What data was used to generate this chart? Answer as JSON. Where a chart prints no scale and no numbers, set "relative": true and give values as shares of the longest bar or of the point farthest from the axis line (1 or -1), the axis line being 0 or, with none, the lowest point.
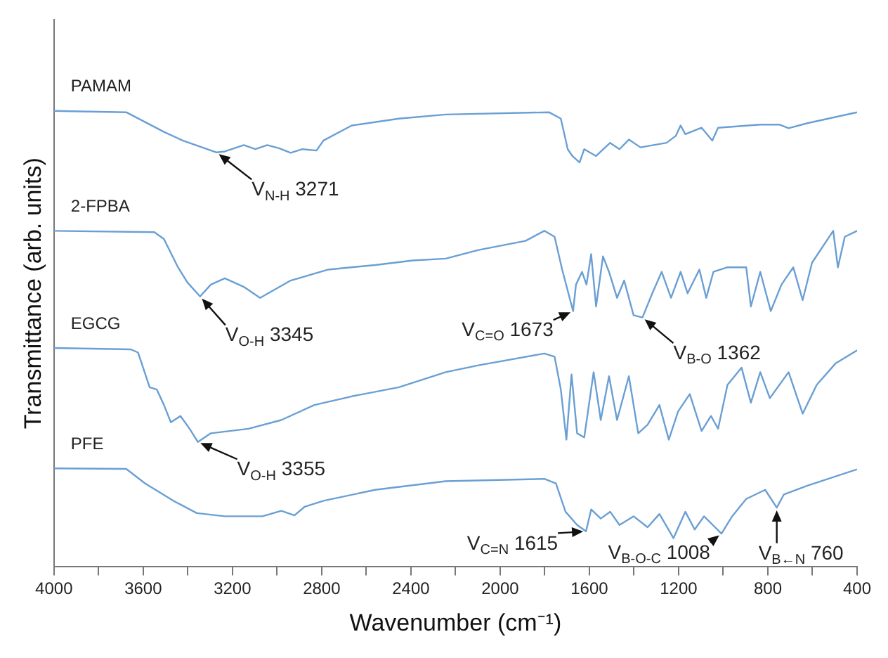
{
  "chart_data": {
    "type": "line",
    "xlabel": "Wavenumber (cm⁻¹)",
    "ylabel": "Transmittance (arb. units)",
    "relative": true,
    "legend": false,
    "grid": false,
    "marker": "none",
    "line_style": "solid",
    "xlim": [
      4000,
      400
    ],
    "xticks": [
      4000,
      {
        "value": 3800,
        "label": null
      },
      3600,
      {
        "value": 3400,
        "label": null
      },
      3200,
      {
        "value": 3000,
        "label": null
      },
      2800,
      {
        "value": 2600,
        "label": null
      },
      2400,
      {
        "value": 2200,
        "label": null
      },
      2000,
      {
        "value": 1800,
        "label": null
      },
      1600,
      {
        "value": 1400,
        "label": null
      },
      1200,
      {
        "value": 1000,
        "label": null
      },
      800,
      {
        "value": 600,
        "label": null
      },
      400
    ],
    "series": [
      {
        "name": "PAMAM",
        "color": "#6a9fd4",
        "x": [
          4000,
          3676,
          3507,
          3423,
          3271,
          3234,
          3149,
          3097,
          3044,
          2991,
          2939,
          2886,
          2823,
          2792,
          2665,
          2454,
          2244,
          1781,
          1728,
          1697,
          1676,
          1644,
          1623,
          1570,
          1507,
          1465,
          1423,
          1371,
          1254,
          1213,
          1191,
          1170,
          1097,
          1049,
          1023,
          834,
          749,
          707,
          623,
          400
        ],
        "values": [
          1.0,
          0.997,
          0.954,
          0.935,
          0.909,
          0.911,
          0.925,
          0.916,
          0.925,
          0.918,
          0.908,
          0.916,
          0.913,
          0.935,
          0.968,
          0.983,
          0.992,
          0.997,
          0.983,
          0.916,
          0.901,
          0.887,
          0.916,
          0.901,
          0.93,
          0.916,
          0.937,
          0.92,
          0.93,
          0.945,
          0.968,
          0.949,
          0.963,
          0.935,
          0.963,
          0.97,
          0.97,
          0.962,
          0.973,
          0.997
        ]
      },
      {
        "name": "2-FPBA",
        "color": "#6a9fd4",
        "x": [
          4000,
          3550,
          3507,
          3444,
          3402,
          3345,
          3297,
          3234,
          3149,
          3076,
          2939,
          2770,
          2560,
          2391,
          2244,
          2097,
          1886,
          1802,
          1756,
          1722,
          1673,
          1660,
          1633,
          1613,
          1592,
          1570,
          1539,
          1512,
          1476,
          1444,
          1402,
          1362,
          1318,
          1276,
          1234,
          1191,
          1160,
          1107,
          1076,
          1044,
          981,
          897,
          876,
          834,
          787,
          739,
          686,
          644,
          602,
          507,
          486,
          455,
          400
        ],
        "values": [
          0.737,
          0.734,
          0.719,
          0.657,
          0.624,
          0.593,
          0.619,
          0.633,
          0.614,
          0.59,
          0.628,
          0.652,
          0.662,
          0.672,
          0.676,
          0.695,
          0.715,
          0.737,
          0.724,
          0.652,
          0.561,
          0.619,
          0.647,
          0.619,
          0.686,
          0.571,
          0.681,
          0.647,
          0.59,
          0.628,
          0.552,
          0.547,
          0.6,
          0.647,
          0.59,
          0.647,
          0.6,
          0.652,
          0.59,
          0.647,
          0.657,
          0.657,
          0.571,
          0.647,
          0.561,
          0.619,
          0.657,
          0.585,
          0.667,
          0.737,
          0.657,
          0.724,
          0.737
        ]
      },
      {
        "name": "EGCG",
        "color": "#6a9fd4",
        "x": [
          4000,
          3655,
          3623,
          3571,
          3539,
          3507,
          3476,
          3433,
          3392,
          3355,
          3297,
          3128,
          2981,
          2833,
          2665,
          2454,
          2244,
          2097,
          1802,
          1756,
          1728,
          1703,
          1680,
          1655,
          1623,
          1581,
          1549,
          1512,
          1476,
          1423,
          1381,
          1339,
          1286,
          1244,
          1202,
          1150,
          1097,
          1055,
          1023,
          981,
          918,
          876,
          834,
          791,
          707,
          644,
          581,
          497,
          400
        ],
        "values": [
          0.48,
          0.477,
          0.47,
          0.394,
          0.389,
          0.355,
          0.317,
          0.331,
          0.303,
          0.274,
          0.293,
          0.303,
          0.322,
          0.355,
          0.374,
          0.394,
          0.427,
          0.442,
          0.468,
          0.461,
          0.389,
          0.279,
          0.422,
          0.293,
          0.284,
          0.427,
          0.322,
          0.418,
          0.322,
          0.418,
          0.293,
          0.312,
          0.355,
          0.279,
          0.341,
          0.379,
          0.298,
          0.331,
          0.303,
          0.399,
          0.437,
          0.36,
          0.427,
          0.37,
          0.427,
          0.336,
          0.399,
          0.446,
          0.475
        ]
      },
      {
        "name": "PFE",
        "color": "#6a9fd4",
        "x": [
          4000,
          3676,
          3591,
          3465,
          3360,
          3234,
          3065,
          2981,
          2922,
          2876,
          2792,
          2560,
          2244,
          1802,
          1750,
          1707,
          1655,
          1615,
          1592,
          1549,
          1507,
          1465,
          1402,
          1339,
          1286,
          1223,
          1170,
          1128,
          1086,
          1008,
          960,
          897,
          812,
          760,
          728,
          623,
          400
        ],
        "values": [
          0.216,
          0.215,
          0.183,
          0.145,
          0.118,
          0.111,
          0.111,
          0.123,
          0.113,
          0.132,
          0.145,
          0.169,
          0.188,
          0.193,
          0.183,
          0.121,
          0.092,
          0.078,
          0.126,
          0.106,
          0.121,
          0.092,
          0.111,
          0.087,
          0.116,
          0.063,
          0.121,
          0.082,
          0.111,
          0.073,
          0.111,
          0.149,
          0.169,
          0.13,
          0.159,
          0.178,
          0.214
        ]
      }
    ],
    "annotations": [
      {
        "text": "V$_{N-H}$ 3271",
        "x": 3271,
        "y": 0.909
      },
      {
        "text": "V$_{O-H}$ 3345",
        "x": 3345,
        "y": 0.593
      },
      {
        "text": "V$_{C=O}$ 1673",
        "x": 1673,
        "y": 0.561
      },
      {
        "text": "V$_{B-O}$ 1362",
        "x": 1362,
        "y": 0.547
      },
      {
        "text": "V$_{O-H}$ 3355",
        "x": 3355,
        "y": 0.274
      },
      {
        "text": "V$_{C=N}$ 1615",
        "x": 1615,
        "y": 0.078
      },
      {
        "text": "V$_{B-O-C}$ 1008",
        "x": 1008,
        "y": 0.073
      },
      {
        "text": "V$_{B←N}$ 760",
        "x": 760,
        "y": 0.13
      }
    ]
  }
}
